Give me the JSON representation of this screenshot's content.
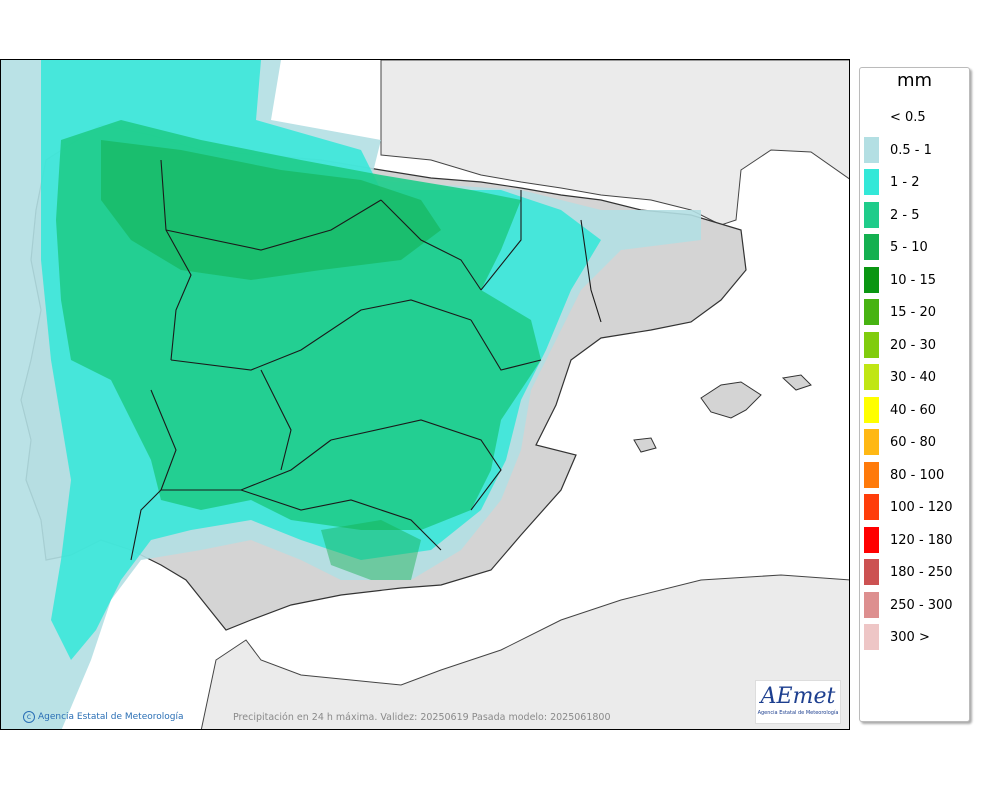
{
  "map": {
    "caption": "Precipitación en 24 h máxima. Validez: 20250619 Pasada modelo: 2025061800",
    "copyright": "Agencia Estatal de Meteorología",
    "logo_text": "AEmet",
    "logo_subtext": "Agencia Estatal de Meteorología"
  },
  "legend": {
    "title": "mm",
    "items": [
      {
        "label": "< 0.5",
        "color": "#ffffff"
      },
      {
        "label": "0.5 - 1",
        "color": "#b3dfe3"
      },
      {
        "label": "1 - 2",
        "color": "#33e8d8"
      },
      {
        "label": "2 - 5",
        "color": "#1fcc8a"
      },
      {
        "label": "5 - 10",
        "color": "#14b050"
      },
      {
        "label": "10 - 15",
        "color": "#0a9612"
      },
      {
        "label": "15 - 20",
        "color": "#47b312"
      },
      {
        "label": "20 - 30",
        "color": "#80cc0d"
      },
      {
        "label": "30 - 40",
        "color": "#c0e614"
      },
      {
        "label": "40 - 60",
        "color": "#ffff00"
      },
      {
        "label": "60 - 80",
        "color": "#ffb814"
      },
      {
        "label": "80 - 100",
        "color": "#ff7a0a"
      },
      {
        "label": "100 - 120",
        "color": "#ff3d0a"
      },
      {
        "label": "120 - 180",
        "color": "#ff0000"
      },
      {
        "label": "180 - 250",
        "color": "#cc5252"
      },
      {
        "label": "250 - 300",
        "color": "#dd8f8f"
      },
      {
        "label": "300 >",
        "color": "#eec6c6"
      }
    ]
  }
}
